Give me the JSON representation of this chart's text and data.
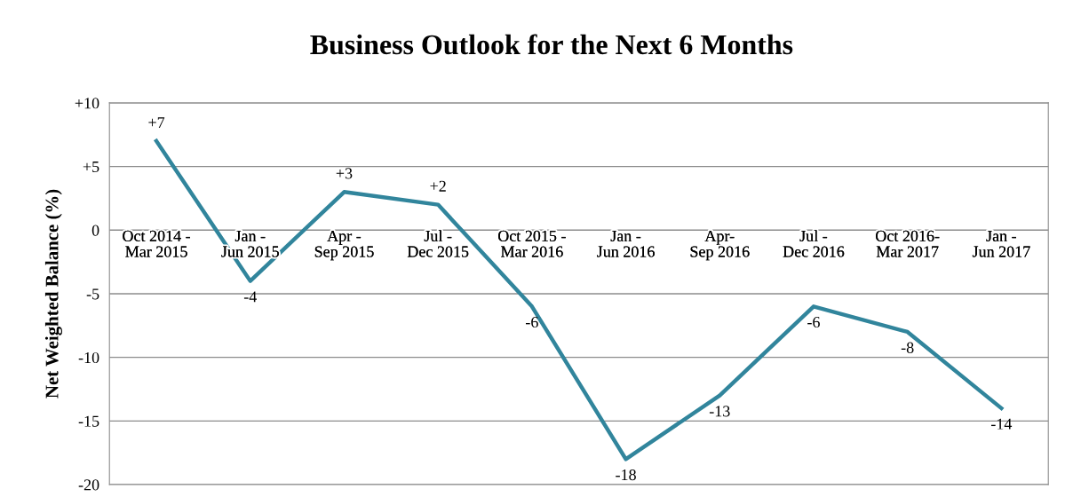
{
  "chart_data": {
    "type": "line",
    "title": "Business Outlook for the Next 6 Months",
    "ylabel": "Net Weighted Balance (%)",
    "categories": [
      "Oct 2014 -\nMar 2015",
      "Jan -\nJun 2015",
      "Apr -\nSep 2015",
      "Jul -\nDec 2015",
      "Oct 2015 -\nMar 2016",
      "Jan -\nJun 2016",
      "Apr-\nSep 2016",
      "Jul -\nDec 2016",
      "Oct 2016-\nMar 2017",
      "Jan -\nJun 2017"
    ],
    "series": [
      {
        "color": "#31859c",
        "values": [
          7,
          -4,
          3,
          2,
          -6,
          -18,
          -13,
          -6,
          -8,
          -14
        ],
        "value_labels": [
          "+7",
          "-4",
          "+3",
          "+2",
          "-6",
          "-18",
          "-13",
          "-6",
          "-8",
          "-14"
        ]
      }
    ],
    "ylim": [
      -20,
      10
    ],
    "yticks": [
      {
        "value": -20,
        "label": "-20"
      },
      {
        "value": -15,
        "label": "-15"
      },
      {
        "value": -10,
        "label": "-10"
      },
      {
        "value": -5,
        "label": "-5"
      },
      0,
      {
        "value": 5,
        "label": "+5"
      },
      {
        "value": 10,
        "label": "+10"
      }
    ],
    "grid": "y",
    "marker": "none",
    "line_style": "solid"
  }
}
